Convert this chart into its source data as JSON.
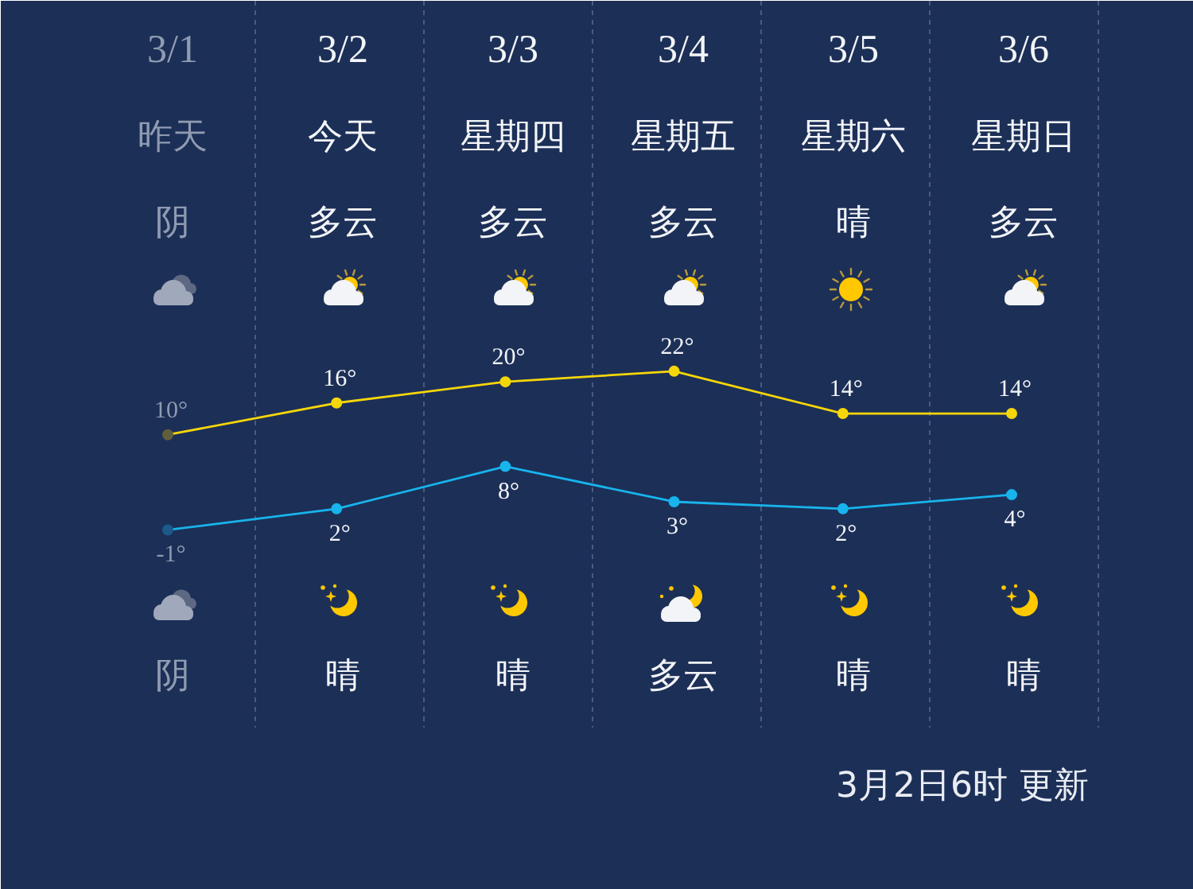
{
  "chart_data": {
    "type": "line",
    "categories": [
      "3/1",
      "3/2",
      "3/3",
      "3/4",
      "3/5",
      "3/6"
    ],
    "series": [
      {
        "color": "#f5d60a",
        "colors": [
          "#605f3c",
          "#f5d60a",
          "#f5d60a",
          "#f5d60a",
          "#f5d60a",
          "#f5d60a"
        ],
        "values": [
          10,
          16,
          20,
          22,
          14,
          14
        ],
        "value_labels": [
          "10°",
          "16°",
          "20°",
          "22°",
          "14°",
          "14°"
        ]
      },
      {
        "color": "#18b4ec",
        "axis": "y2",
        "colors": [
          "#1c5a8c",
          "#18b4ec",
          "#18b4ec",
          "#18b4ec",
          "#18b4ec",
          "#18b4ec"
        ],
        "values": [
          -1,
          2,
          8,
          3,
          2,
          4
        ],
        "value_labels": [
          "-1°",
          "2°",
          "8°",
          "3°",
          "2°",
          "4°"
        ]
      }
    ],
    "ylim": [
      -76,
      92
    ],
    "y2lim": [
      -52,
      74
    ],
    "marker": "circle",
    "line_style": "solid",
    "grid": "x",
    "tick_labels": "x",
    "annotations": [
      "昨天",
      "今天",
      "星期四",
      "星期五",
      "星期六",
      "星期日",
      "阴",
      "多云",
      "多云",
      "多云",
      "晴",
      "多云",
      "阴",
      "晴",
      "晴",
      "多云",
      "晴",
      "晴",
      "3月2日6时 更新"
    ]
  }
}
